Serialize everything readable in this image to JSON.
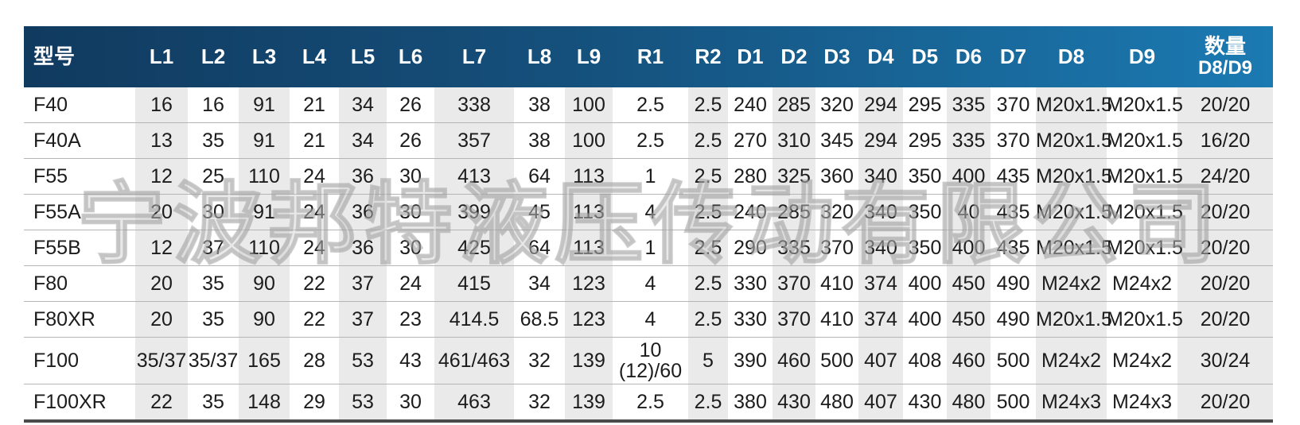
{
  "watermark": "宁波邦特液压传动有限公司",
  "colors": {
    "header_gradient_left": "#113a5f",
    "header_gradient_right": "#1b7ab2",
    "header_text": "#ffffff",
    "shaded_column": "#eaeaea",
    "row_divider": "#b5b5b5",
    "bottom_border": "#4b4b4b",
    "cell_text": "#1c1c1c"
  },
  "table": {
    "columns": [
      {
        "key": "model",
        "label": "型号"
      },
      {
        "key": "L1",
        "label": "L1"
      },
      {
        "key": "L2",
        "label": "L2"
      },
      {
        "key": "L3",
        "label": "L3"
      },
      {
        "key": "L4",
        "label": "L4"
      },
      {
        "key": "L5",
        "label": "L5"
      },
      {
        "key": "L6",
        "label": "L6"
      },
      {
        "key": "L7",
        "label": "L7"
      },
      {
        "key": "L8",
        "label": "L8"
      },
      {
        "key": "L9",
        "label": "L9"
      },
      {
        "key": "R1",
        "label": "R1"
      },
      {
        "key": "R2",
        "label": "R2"
      },
      {
        "key": "D1",
        "label": "D1"
      },
      {
        "key": "D2",
        "label": "D2"
      },
      {
        "key": "D3",
        "label": "D3"
      },
      {
        "key": "D4",
        "label": "D4"
      },
      {
        "key": "D5",
        "label": "D5"
      },
      {
        "key": "D6",
        "label": "D6"
      },
      {
        "key": "D7",
        "label": "D7"
      },
      {
        "key": "D8",
        "label": "D8"
      },
      {
        "key": "D9",
        "label": "D9"
      },
      {
        "key": "qty",
        "label": "数量",
        "label2": "D8/D9"
      }
    ],
    "rows": [
      {
        "model": "F40",
        "tall": false,
        "cells": [
          "16",
          "16",
          "91",
          "21",
          "34",
          "26",
          "338",
          "38",
          "100",
          "2.5",
          "2.5",
          "240",
          "285",
          "320",
          "294",
          "295",
          "335",
          "370",
          "M20x1.5",
          "M20x1.5",
          "20/20"
        ]
      },
      {
        "model": "F40A",
        "tall": false,
        "cells": [
          "13",
          "35",
          "91",
          "21",
          "34",
          "26",
          "357",
          "38",
          "100",
          "2.5",
          "2.5",
          "270",
          "310",
          "345",
          "294",
          "295",
          "335",
          "370",
          "M20x1.5",
          "M20x1.5",
          "16/20"
        ]
      },
      {
        "model": "F55",
        "tall": false,
        "cells": [
          "12",
          "25",
          "110",
          "24",
          "36",
          "30",
          "413",
          "64",
          "113",
          "1",
          "2.5",
          "280",
          "325",
          "360",
          "340",
          "350",
          "400",
          "435",
          "M20x1.5",
          "M20x1.5",
          "24/20"
        ]
      },
      {
        "model": "F55A",
        "tall": false,
        "cells": [
          "20",
          "30",
          "91",
          "24",
          "36",
          "30",
          "399",
          "45",
          "113",
          "4",
          "2.5",
          "240",
          "285",
          "320",
          "340",
          "350",
          "40",
          "435",
          "M20x1.5",
          "M20x1.5",
          "20/20"
        ]
      },
      {
        "model": "F55B",
        "tall": false,
        "cells": [
          "12",
          "37",
          "110",
          "24",
          "36",
          "30",
          "425",
          "64",
          "113",
          "1",
          "2.5",
          "290",
          "335",
          "370",
          "340",
          "350",
          "400",
          "435",
          "M20x1.5",
          "M20x1.5",
          "20/20"
        ]
      },
      {
        "model": "F80",
        "tall": false,
        "cells": [
          "20",
          "35",
          "90",
          "22",
          "37",
          "24",
          "415",
          "34",
          "123",
          "4",
          "2.5",
          "330",
          "370",
          "410",
          "374",
          "400",
          "450",
          "490",
          "M24x2",
          "M24x2",
          "20/20"
        ]
      },
      {
        "model": "F80XR",
        "tall": false,
        "cells": [
          "20",
          "35",
          "90",
          "22",
          "37",
          "23",
          "414.5",
          "68.5",
          "123",
          "4",
          "2.5",
          "330",
          "370",
          "410",
          "374",
          "400",
          "450",
          "490",
          "M20x1.5",
          "M20x1.5",
          "20/20"
        ]
      },
      {
        "model": "F100",
        "tall": true,
        "cells": [
          "35/37",
          "35/37",
          "165",
          "28",
          "53",
          "43",
          "461/463",
          "32",
          "139",
          "10\n(12)/60",
          "5",
          "390",
          "460",
          "500",
          "407",
          "408",
          "460",
          "500",
          "M24x2",
          "M24x2",
          "30/24"
        ]
      },
      {
        "model": "F100XR",
        "tall": false,
        "cells": [
          "22",
          "35",
          "148",
          "29",
          "53",
          "30",
          "463",
          "32",
          "139",
          "2.5",
          "2.5",
          "380",
          "430",
          "480",
          "407",
          "430",
          "480",
          "500",
          "M24x3",
          "M24x3",
          "20/20"
        ]
      }
    ]
  }
}
